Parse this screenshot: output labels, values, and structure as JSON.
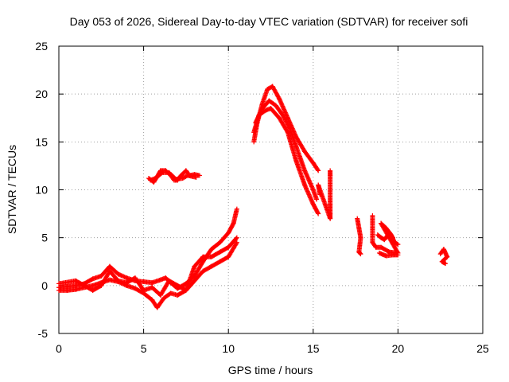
{
  "chart_data": {
    "type": "scatter",
    "title": "Day 053 of 2026, Sidereal Day-to-day VTEC variation (SDTVAR) for receiver sofi",
    "xlabel": "GPS time / hours",
    "ylabel": "SDTVAR / TECUs",
    "xlim": [
      0,
      25
    ],
    "ylim": [
      -5,
      25
    ],
    "xticks": [
      "0",
      "5",
      "10",
      "15",
      "20",
      "25"
    ],
    "yticks": [
      "-5",
      "0",
      "5",
      "10",
      "15",
      "20",
      "25"
    ],
    "grid": true,
    "marker": "+",
    "color": "#ff0000",
    "series": [
      {
        "name": "SDTVAR",
        "segments": [
          [
            [
              0,
              -0.2
            ],
            [
              0.5,
              -0.1
            ],
            [
              1,
              0
            ],
            [
              1.5,
              0.2
            ],
            [
              2,
              0.7
            ],
            [
              2.5,
              1
            ],
            [
              3,
              2
            ],
            [
              3.5,
              1.2
            ],
            [
              4,
              0.8
            ],
            [
              4.5,
              0.5
            ],
            [
              5,
              0.4
            ],
            [
              5.5,
              0.3
            ],
            [
              6,
              0.6
            ],
            [
              6.3,
              0.8
            ],
            [
              6.6,
              0.3
            ],
            [
              7,
              -0.3
            ],
            [
              7.5,
              0.2
            ],
            [
              8,
              1
            ],
            [
              8.5,
              2.5
            ],
            [
              9,
              3.8
            ],
            [
              9.5,
              4.5
            ],
            [
              10,
              5.5
            ],
            [
              10.3,
              6.5
            ],
            [
              10.5,
              8
            ]
          ],
          [
            [
              0,
              -0.5
            ],
            [
              0.5,
              -0.5
            ],
            [
              1,
              -0.4
            ],
            [
              1.5,
              -0.2
            ],
            [
              2,
              0
            ],
            [
              2.5,
              0.3
            ],
            [
              3,
              0.6
            ],
            [
              3.5,
              0.4
            ],
            [
              4,
              0
            ],
            [
              4.5,
              -0.3
            ],
            [
              5,
              -0.8
            ],
            [
              5.5,
              -1.5
            ],
            [
              5.8,
              -2.3
            ],
            [
              6.2,
              -1.3
            ],
            [
              6.6,
              -0.8
            ],
            [
              7,
              -1
            ],
            [
              7.5,
              -0.5
            ],
            [
              8,
              0.5
            ],
            [
              8.5,
              1.5
            ],
            [
              9,
              2
            ],
            [
              9.5,
              2.5
            ],
            [
              10,
              3
            ],
            [
              10.5,
              4.5
            ]
          ],
          [
            [
              0,
              0.2
            ],
            [
              1,
              0.5
            ],
            [
              2,
              -0.5
            ],
            [
              2.5,
              0
            ],
            [
              3,
              1.5
            ],
            [
              3.5,
              0.5
            ],
            [
              4,
              0.3
            ],
            [
              4.5,
              0.8
            ],
            [
              5,
              -0.5
            ],
            [
              5.5,
              -0.2
            ],
            [
              6,
              -1
            ],
            [
              6.5,
              0.5
            ],
            [
              7,
              0
            ],
            [
              7.5,
              -0.5
            ],
            [
              8,
              2
            ],
            [
              8.5,
              3
            ],
            [
              9,
              3
            ],
            [
              9.5,
              3.5
            ],
            [
              10,
              4
            ],
            [
              10.5,
              5
            ]
          ],
          [
            [
              5.3,
              11.2
            ],
            [
              5.6,
              10.8
            ],
            [
              6,
              12
            ],
            [
              6.3,
              12
            ],
            [
              6.6,
              11.5
            ],
            [
              6.8,
              11
            ],
            [
              7,
              11
            ],
            [
              7.2,
              11.5
            ],
            [
              7.5,
              12
            ],
            [
              7.7,
              11.5
            ],
            [
              8,
              11.6
            ],
            [
              8.3,
              11.5
            ]
          ],
          [
            [
              5.4,
              11
            ],
            [
              5.7,
              11.2
            ],
            [
              6.1,
              11.8
            ],
            [
              6.5,
              11.8
            ],
            [
              6.9,
              11.1
            ],
            [
              7.3,
              11.2
            ],
            [
              7.6,
              11.5
            ],
            [
              8.1,
              11.3
            ]
          ],
          [
            [
              11.5,
              15
            ],
            [
              11.7,
              17
            ],
            [
              12,
              19
            ],
            [
              12.3,
              20.5
            ],
            [
              12.6,
              20.8
            ],
            [
              13,
              19.5
            ],
            [
              13.5,
              17.5
            ],
            [
              14,
              15.5
            ],
            [
              14.5,
              14
            ],
            [
              15,
              12.8
            ],
            [
              15.3,
              12
            ]
          ],
          [
            [
              11.5,
              16
            ],
            [
              11.8,
              17.8
            ],
            [
              12.2,
              18.3
            ],
            [
              12.5,
              18.5
            ],
            [
              13,
              17.5
            ],
            [
              13.5,
              16
            ],
            [
              14,
              13
            ],
            [
              14.5,
              10.5
            ],
            [
              15,
              8.5
            ],
            [
              15.3,
              7.5
            ]
          ],
          [
            [
              11.6,
              17
            ],
            [
              12,
              18.5
            ],
            [
              12.4,
              19.3
            ],
            [
              12.8,
              18.8
            ],
            [
              13.2,
              17.8
            ],
            [
              13.6,
              16.5
            ],
            [
              14,
              14.5
            ],
            [
              14.5,
              12
            ],
            [
              15,
              10
            ],
            [
              15.2,
              9
            ]
          ],
          [
            [
              16,
              12
            ],
            [
              16,
              11.5
            ],
            [
              16,
              8.5
            ],
            [
              16,
              7.5
            ],
            [
              16,
              7
            ],
            [
              15.3,
              10.5
            ],
            [
              15.4,
              9.5
            ]
          ],
          [
            [
              17.6,
              7
            ],
            [
              17.7,
              6
            ],
            [
              17.8,
              5
            ],
            [
              17.7,
              3.5
            ],
            [
              17.8,
              3.3
            ]
          ],
          [
            [
              18.5,
              7.3
            ],
            [
              18.5,
              4.5
            ],
            [
              18.7,
              4
            ],
            [
              19,
              4
            ],
            [
              19.5,
              3.5
            ],
            [
              20,
              3.4
            ],
            [
              19,
              6.5
            ],
            [
              19.3,
              6
            ],
            [
              19.6,
              5.3
            ],
            [
              19.8,
              4.5
            ],
            [
              20,
              4.3
            ]
          ],
          [
            [
              18.8,
              5.3
            ],
            [
              19,
              5
            ],
            [
              19.2,
              4.8
            ],
            [
              19.5,
              5.5
            ],
            [
              19.7,
              5
            ]
          ],
          [
            [
              18.9,
              3.4
            ],
            [
              19.3,
              3.1
            ],
            [
              19.7,
              3.2
            ],
            [
              20,
              3.2
            ]
          ],
          [
            [
              22.5,
              3.3
            ],
            [
              22.7,
              3.8
            ],
            [
              22.9,
              3
            ],
            [
              22.6,
              2.5
            ],
            [
              22.8,
              2.3
            ]
          ]
        ]
      }
    ]
  }
}
